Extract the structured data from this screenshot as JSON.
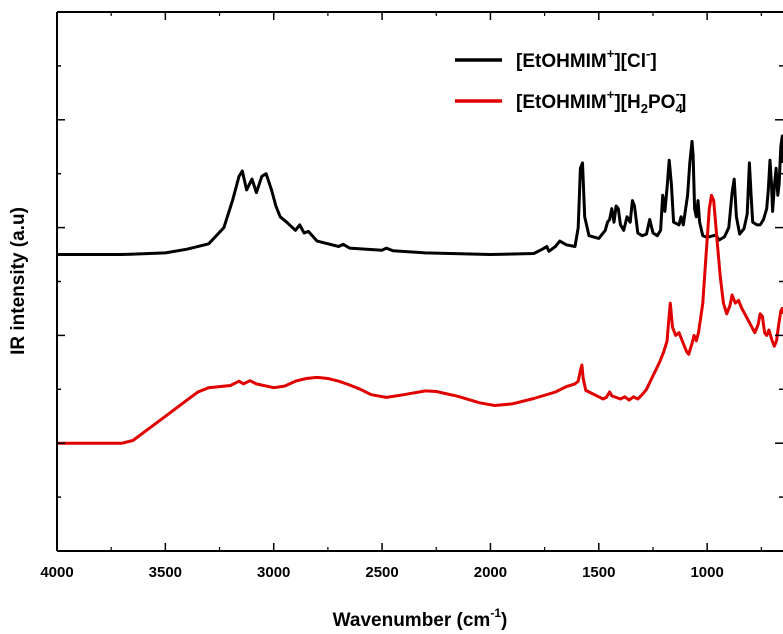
{
  "chart_data": {
    "type": "line",
    "xlabel": {
      "main": "Wavenumber (cm",
      "sup": "-1",
      "tail": ")"
    },
    "ylabel": "IR intensity (a.u)",
    "xlim": [
      4000,
      650
    ],
    "x_reversed": true,
    "xticks": [
      4000,
      3500,
      3000,
      2500,
      2000,
      1500,
      1000
    ],
    "xtick_labels": [
      "4000",
      "3500",
      "3000",
      "2500",
      "2000",
      "1500",
      "1000"
    ],
    "ylim": [
      0,
      100
    ],
    "y_tick_labels_shown": false,
    "grid": false,
    "legend_position": "top-right",
    "legend": [
      {
        "base": "[EtOHMIM",
        "sup1": "+",
        "mid": "][Cl",
        "sup2": "-",
        "tail": "]"
      },
      {
        "base": "[EtOHMIM",
        "sup1": "+",
        "mid": "][H",
        "sub1": "2",
        "mid2": "PO",
        "sub2": "4",
        "sup2": "-",
        "tail": "]"
      }
    ],
    "series": [
      {
        "color": "#000000",
        "points": [
          [
            4000,
            55.0
          ],
          [
            3700,
            55.0
          ],
          [
            3500,
            55.3
          ],
          [
            3400,
            56.0
          ],
          [
            3300,
            57.0
          ],
          [
            3230,
            60.0
          ],
          [
            3190,
            65.0
          ],
          [
            3160,
            69.5
          ],
          [
            3145,
            70.5
          ],
          [
            3125,
            67.0
          ],
          [
            3100,
            69.0
          ],
          [
            3080,
            66.5
          ],
          [
            3055,
            69.5
          ],
          [
            3035,
            70.0
          ],
          [
            3010,
            67.0
          ],
          [
            2990,
            64.0
          ],
          [
            2970,
            62.0
          ],
          [
            2940,
            61.0
          ],
          [
            2900,
            59.5
          ],
          [
            2880,
            60.5
          ],
          [
            2860,
            59.0
          ],
          [
            2840,
            59.3
          ],
          [
            2800,
            57.5
          ],
          [
            2700,
            56.5
          ],
          [
            2680,
            56.9
          ],
          [
            2650,
            56.2
          ],
          [
            2500,
            55.8
          ],
          [
            2480,
            56.2
          ],
          [
            2450,
            55.7
          ],
          [
            2300,
            55.3
          ],
          [
            2000,
            55.0
          ],
          [
            1800,
            55.2
          ],
          [
            1760,
            56.0
          ],
          [
            1740,
            56.5
          ],
          [
            1730,
            55.6
          ],
          [
            1700,
            56.5
          ],
          [
            1680,
            57.5
          ],
          [
            1650,
            56.8
          ],
          [
            1610,
            56.5
          ],
          [
            1595,
            60.0
          ],
          [
            1585,
            71.0
          ],
          [
            1575,
            72.0
          ],
          [
            1565,
            62.0
          ],
          [
            1545,
            58.5
          ],
          [
            1500,
            58.0
          ],
          [
            1470,
            59.5
          ],
          [
            1460,
            61.0
          ],
          [
            1450,
            61.5
          ],
          [
            1440,
            63.5
          ],
          [
            1430,
            61.0
          ],
          [
            1420,
            64.0
          ],
          [
            1410,
            63.5
          ],
          [
            1400,
            60.5
          ],
          [
            1385,
            59.5
          ],
          [
            1370,
            62.0
          ],
          [
            1355,
            61.0
          ],
          [
            1345,
            65.0
          ],
          [
            1335,
            64.0
          ],
          [
            1320,
            59.0
          ],
          [
            1300,
            58.5
          ],
          [
            1280,
            58.8
          ],
          [
            1265,
            61.5
          ],
          [
            1250,
            59.0
          ],
          [
            1230,
            58.5
          ],
          [
            1215,
            59.5
          ],
          [
            1205,
            66.0
          ],
          [
            1195,
            63.0
          ],
          [
            1185,
            67.5
          ],
          [
            1175,
            72.5
          ],
          [
            1165,
            68.0
          ],
          [
            1155,
            61.0
          ],
          [
            1130,
            60.5
          ],
          [
            1120,
            62.0
          ],
          [
            1110,
            60.5
          ],
          [
            1090,
            66.0
          ],
          [
            1080,
            72.0
          ],
          [
            1070,
            76.0
          ],
          [
            1065,
            73.5
          ],
          [
            1058,
            63.5
          ],
          [
            1050,
            62.0
          ],
          [
            1042,
            65.0
          ],
          [
            1035,
            61.0
          ],
          [
            1020,
            58.5
          ],
          [
            1000,
            58.2
          ],
          [
            960,
            58.6
          ],
          [
            945,
            57.7
          ],
          [
            920,
            58.3
          ],
          [
            900,
            60.0
          ],
          [
            885,
            66.5
          ],
          [
            875,
            69.0
          ],
          [
            865,
            62.0
          ],
          [
            850,
            58.8
          ],
          [
            830,
            59.8
          ],
          [
            815,
            62.5
          ],
          [
            805,
            72.0
          ],
          [
            797,
            66.0
          ],
          [
            790,
            61.0
          ],
          [
            770,
            60.5
          ],
          [
            755,
            60.5
          ],
          [
            740,
            61.5
          ],
          [
            725,
            63.5
          ],
          [
            718,
            67.0
          ],
          [
            710,
            72.5
          ],
          [
            703,
            68.0
          ],
          [
            698,
            63.0
          ],
          [
            690,
            67.5
          ],
          [
            682,
            71.0
          ],
          [
            674,
            66.0
          ],
          [
            668,
            68.0
          ],
          [
            660,
            75.0
          ],
          [
            653,
            77.0
          ],
          [
            650,
            72.0
          ]
        ]
      },
      {
        "color": "#e00000",
        "points": [
          [
            4000,
            20.0
          ],
          [
            3700,
            20.0
          ],
          [
            3650,
            20.5
          ],
          [
            3600,
            22.0
          ],
          [
            3500,
            25.0
          ],
          [
            3400,
            28.0
          ],
          [
            3350,
            29.5
          ],
          [
            3300,
            30.3
          ],
          [
            3200,
            30.7
          ],
          [
            3160,
            31.5
          ],
          [
            3140,
            31.0
          ],
          [
            3110,
            31.6
          ],
          [
            3080,
            31.0
          ],
          [
            3000,
            30.3
          ],
          [
            2950,
            30.6
          ],
          [
            2900,
            31.5
          ],
          [
            2850,
            32.0
          ],
          [
            2800,
            32.2
          ],
          [
            2750,
            32.0
          ],
          [
            2700,
            31.5
          ],
          [
            2650,
            30.8
          ],
          [
            2600,
            30.0
          ],
          [
            2550,
            29.0
          ],
          [
            2480,
            28.5
          ],
          [
            2400,
            29.0
          ],
          [
            2300,
            29.7
          ],
          [
            2250,
            29.6
          ],
          [
            2150,
            28.7
          ],
          [
            2050,
            27.5
          ],
          [
            1980,
            27.0
          ],
          [
            1900,
            27.3
          ],
          [
            1800,
            28.3
          ],
          [
            1700,
            29.5
          ],
          [
            1650,
            30.5
          ],
          [
            1610,
            31.0
          ],
          [
            1595,
            31.5
          ],
          [
            1585,
            33.5
          ],
          [
            1578,
            34.5
          ],
          [
            1572,
            32.0
          ],
          [
            1560,
            29.8
          ],
          [
            1530,
            29.2
          ],
          [
            1500,
            28.6
          ],
          [
            1480,
            28.2
          ],
          [
            1465,
            28.5
          ],
          [
            1450,
            29.5
          ],
          [
            1440,
            28.8
          ],
          [
            1420,
            28.5
          ],
          [
            1400,
            28.2
          ],
          [
            1380,
            28.6
          ],
          [
            1360,
            28.0
          ],
          [
            1340,
            28.6
          ],
          [
            1320,
            28.2
          ],
          [
            1300,
            29.0
          ],
          [
            1280,
            30.0
          ],
          [
            1250,
            32.5
          ],
          [
            1220,
            35.0
          ],
          [
            1200,
            37.0
          ],
          [
            1185,
            39.0
          ],
          [
            1178,
            42.5
          ],
          [
            1170,
            46.0
          ],
          [
            1160,
            41.5
          ],
          [
            1145,
            40.0
          ],
          [
            1130,
            40.5
          ],
          [
            1110,
            38.5
          ],
          [
            1095,
            37.0
          ],
          [
            1085,
            36.5
          ],
          [
            1070,
            38.5
          ],
          [
            1060,
            40.0
          ],
          [
            1050,
            39.0
          ],
          [
            1040,
            40.5
          ],
          [
            1020,
            46.0
          ],
          [
            1005,
            55.0
          ],
          [
            990,
            63.5
          ],
          [
            980,
            66.0
          ],
          [
            970,
            65.0
          ],
          [
            955,
            58.0
          ],
          [
            940,
            51.0
          ],
          [
            925,
            46.0
          ],
          [
            910,
            44.0
          ],
          [
            895,
            45.5
          ],
          [
            885,
            47.5
          ],
          [
            870,
            46.0
          ],
          [
            855,
            46.5
          ],
          [
            840,
            45.0
          ],
          [
            820,
            43.5
          ],
          [
            800,
            42.0
          ],
          [
            780,
            40.5
          ],
          [
            765,
            42.0
          ],
          [
            755,
            44.0
          ],
          [
            745,
            43.5
          ],
          [
            735,
            40.5
          ],
          [
            725,
            40.0
          ],
          [
            715,
            41.0
          ],
          [
            700,
            39.0
          ],
          [
            690,
            38.0
          ],
          [
            680,
            39.0
          ],
          [
            670,
            42.0
          ],
          [
            660,
            44.5
          ],
          [
            653,
            45.0
          ],
          [
            650,
            44.0
          ]
        ]
      }
    ]
  }
}
